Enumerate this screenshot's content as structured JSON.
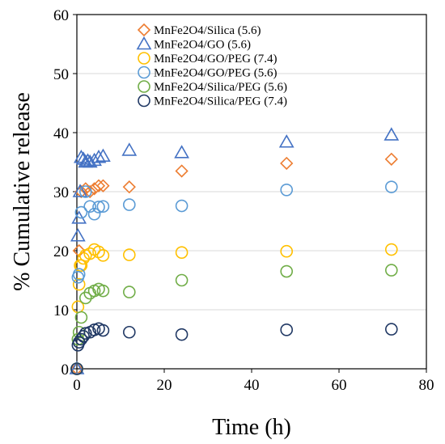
{
  "chart_data": {
    "type": "scatter",
    "title": "",
    "xlabel": "Time (h)",
    "ylabel": "% Cumulative release",
    "xlim": [
      0,
      80
    ],
    "ylim": [
      0,
      60
    ],
    "xticks": [
      0,
      20,
      40,
      60,
      80
    ],
    "yticks": [
      0,
      10,
      20,
      30,
      40,
      50,
      60
    ],
    "grid": "horizontal",
    "legend_position": "top-right",
    "series": [
      {
        "name": "MnFe2O4/Silica (5.6)",
        "marker": "diamond",
        "color": "#ED7D31",
        "x": [
          0,
          0.5,
          1,
          2,
          3,
          4,
          5,
          6,
          12,
          24,
          48,
          72
        ],
        "y": [
          0,
          20,
          30,
          30.5,
          30,
          30.5,
          31,
          31,
          30.8,
          33.5,
          34.8,
          35.5
        ]
      },
      {
        "name": "MnFe2O4/GO (5.6)",
        "marker": "triangle",
        "color": "#4472C4",
        "x": [
          0,
          0.25,
          0.5,
          0.75,
          1,
          1.5,
          2,
          2.5,
          3,
          4,
          5,
          6,
          12,
          24,
          48,
          72
        ],
        "y": [
          0,
          22.5,
          25.5,
          30,
          35.8,
          35.5,
          35,
          35.2,
          35,
          35.3,
          35.8,
          36,
          37,
          36.6,
          38.4,
          39.6
        ]
      },
      {
        "name": "MnFe2O4/GO/PEG (7.4)",
        "marker": "circle",
        "color": "#FFC000",
        "x": [
          0,
          0.25,
          0.5,
          0.75,
          1,
          1.5,
          2,
          3,
          4,
          5,
          6,
          12,
          24,
          48,
          72
        ],
        "y": [
          0,
          10.5,
          14.3,
          17.5,
          17.5,
          18.7,
          19.2,
          19.5,
          20.2,
          19.8,
          19.2,
          19.3,
          19.7,
          19.9,
          20.2
        ]
      },
      {
        "name": "MnFe2O4/GO/PEG (5.6)",
        "marker": "circle",
        "color": "#5B9BD5",
        "x": [
          0,
          0.25,
          0.5,
          1,
          2,
          3,
          4,
          5,
          6,
          12,
          24,
          48,
          72
        ],
        "y": [
          0,
          15.5,
          16,
          26.5,
          30,
          27.5,
          26.2,
          27.4,
          27.5,
          27.8,
          27.6,
          30.3,
          30.8
        ]
      },
      {
        "name": "MnFe2O4/Silica/PEG (5.6)",
        "marker": "circle",
        "color": "#70AD47",
        "x": [
          0,
          0.25,
          0.5,
          1,
          2,
          3,
          4,
          5,
          6,
          12,
          24,
          48,
          72
        ],
        "y": [
          0,
          5,
          6.2,
          8.7,
          12,
          12.8,
          13.2,
          13.5,
          13.2,
          13,
          15,
          16.5,
          16.7
        ]
      },
      {
        "name": "MnFe2O4/Silica/PEG (7.4)",
        "marker": "circle",
        "color": "#203864",
        "x": [
          0,
          0.25,
          0.5,
          1,
          1.5,
          2,
          3,
          4,
          5,
          6,
          12,
          24,
          48,
          72
        ],
        "y": [
          0,
          4,
          4.5,
          5,
          5.5,
          6,
          6.2,
          6.6,
          6.8,
          6.5,
          6.2,
          5.8,
          6.6,
          6.7
        ]
      }
    ]
  }
}
